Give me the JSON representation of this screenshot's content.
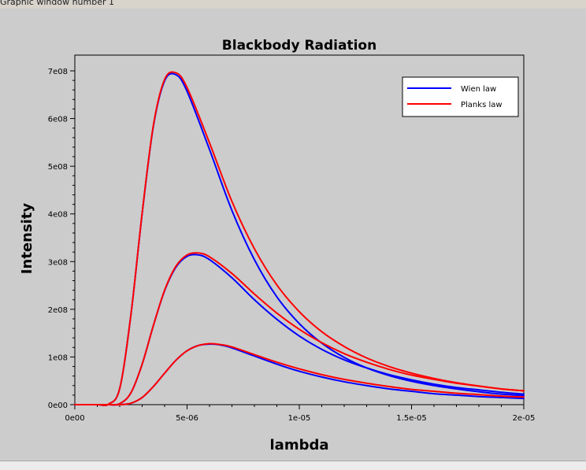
{
  "window": {
    "title": "Graphic window number 1"
  },
  "colors": {
    "wien": "#0000ff",
    "planck": "#ff0000",
    "plot_bg": "#cccccc",
    "axes": "#000000"
  },
  "chart_data": {
    "type": "line",
    "title": "Blackbody Radiation",
    "xlabel": "lambda",
    "ylabel": "Intensity",
    "xlim": [
      0,
      2e-05
    ],
    "ylim": [
      0,
      700000000.0
    ],
    "xticks": [
      {
        "value": 0,
        "label": "0e00"
      },
      {
        "value": 5e-06,
        "label": "5e-06"
      },
      {
        "value": 1e-05,
        "label": "1e-05"
      },
      {
        "value": 1.5e-05,
        "label": "1.5e-05"
      },
      {
        "value": 2e-05,
        "label": "2e-05"
      }
    ],
    "yticks": [
      {
        "value": 0,
        "label": "0e00"
      },
      {
        "value": 100000000.0,
        "label": "1e08"
      },
      {
        "value": 200000000.0,
        "label": "2e08"
      },
      {
        "value": 300000000.0,
        "label": "3e08"
      },
      {
        "value": 400000000.0,
        "label": "4e08"
      },
      {
        "value": 500000000.0,
        "label": "5e08"
      },
      {
        "value": 600000000.0,
        "label": "6e08"
      },
      {
        "value": 700000000.0,
        "label": "7e08"
      }
    ],
    "legend": {
      "placement": "top-right",
      "entries": [
        {
          "label": "Wien law",
          "series": "wien"
        },
        {
          "label": "Planks law",
          "series": "planck"
        }
      ]
    },
    "grid": false,
    "series": [
      {
        "law": "wien",
        "color": "#0000ff",
        "x": [
          1e-06,
          1.5e-06,
          2e-06,
          2.5e-06,
          3e-06,
          3.5e-06,
          4e-06,
          4.5e-06,
          5e-06,
          6e-06,
          7e-06,
          8e-06,
          9e-06,
          1e-05,
          1.1e-05,
          1.2e-05,
          1.3e-05,
          1.4e-05,
          1.5e-05,
          1.6e-05,
          1.7e-05,
          1.8e-05,
          1.9e-05,
          2e-05
        ],
        "y": [
          0,
          1000000.0,
          34000000.0,
          189000000.0,
          401000000.0,
          584000000.0,
          679000000.0,
          692000000.0,
          657000000.0,
          535000000.0,
          407000000.0,
          304000000.0,
          226000000.0,
          170000000.0,
          129000000.0,
          99000000.0,
          77000000.0,
          61000000.0,
          49000000.0,
          40000000.0,
          33000000.0,
          27000000.0,
          22000000.0,
          19000000.0
        ]
      },
      {
        "law": "planck",
        "color": "#ff0000",
        "x": [
          1e-06,
          1.5e-06,
          2e-06,
          2.5e-06,
          3e-06,
          3.5e-06,
          4e-06,
          4.5e-06,
          5e-06,
          6e-06,
          7e-06,
          8e-06,
          9e-06,
          1e-05,
          1.1e-05,
          1.2e-05,
          1.3e-05,
          1.4e-05,
          1.5e-05,
          1.6e-05,
          1.7e-05,
          1.8e-05,
          1.9e-05,
          2e-05
        ],
        "y": [
          0,
          1000000.0,
          34000000.0,
          189000000.0,
          402000000.0,
          586000000.0,
          682000000.0,
          696000000.0,
          665000000.0,
          549000000.0,
          426000000.0,
          327000000.0,
          251000000.0,
          195000000.0,
          153000000.0,
          122000000.0,
          98000000.0,
          80000000.0,
          66000000.0,
          55000000.0,
          46000000.0,
          39000000.0,
          33000000.0,
          29000000.0
        ]
      },
      {
        "law": "wien",
        "color": "#0000ff",
        "x": [
          1e-06,
          1.5e-06,
          2e-06,
          2.5e-06,
          3e-06,
          3.5e-06,
          4e-06,
          4.5e-06,
          5e-06,
          5.5e-06,
          6e-06,
          7e-06,
          8e-06,
          9e-06,
          1e-05,
          1.1e-05,
          1.2e-05,
          1.3e-05,
          1.4e-05,
          1.5e-05,
          1.6e-05,
          1.7e-05,
          1.8e-05,
          1.9e-05,
          2e-05
        ],
        "y": [
          0,
          0,
          2000000.0,
          25000000.0,
          85000000.0,
          166000000.0,
          239000000.0,
          288000000.0,
          311000000.0,
          314000000.0,
          304000000.0,
          266000000.0,
          220000000.0,
          179000000.0,
          144000000.0,
          116000000.0,
          94000000.0,
          77000000.0,
          63000000.0,
          52000000.0,
          43000000.0,
          36000000.0,
          31000000.0,
          26000000.0,
          22000000.0
        ]
      },
      {
        "law": "planck",
        "color": "#ff0000",
        "x": [
          1e-06,
          1.5e-06,
          2e-06,
          2.5e-06,
          3e-06,
          3.5e-06,
          4e-06,
          4.5e-06,
          5e-06,
          5.5e-06,
          6e-06,
          7e-06,
          8e-06,
          9e-06,
          1e-05,
          1.1e-05,
          1.2e-05,
          1.3e-05,
          1.4e-05,
          1.5e-05,
          1.6e-05,
          1.7e-05,
          1.8e-05,
          1.9e-05,
          2e-05
        ],
        "y": [
          0,
          0,
          2000000.0,
          25000000.0,
          85000000.0,
          166000000.0,
          240000000.0,
          290000000.0,
          314000000.0,
          318000000.0,
          310000000.0,
          275000000.0,
          232000000.0,
          192000000.0,
          158000000.0,
          130000000.0,
          107000000.0,
          89000000.0,
          74000000.0,
          62000000.0,
          53000000.0,
          45000000.0,
          39000000.0,
          33000000.0,
          29000000.0
        ]
      },
      {
        "law": "wien",
        "color": "#0000ff",
        "x": [
          1.5e-06,
          2e-06,
          2.5e-06,
          3e-06,
          3.5e-06,
          4e-06,
          4.5e-06,
          5e-06,
          5.5e-06,
          6e-06,
          6.5e-06,
          7e-06,
          8e-06,
          9e-06,
          1e-05,
          1.1e-05,
          1.2e-05,
          1.3e-05,
          1.4e-05,
          1.5e-05,
          1.6e-05,
          1.7e-05,
          1.8e-05,
          1.9e-05,
          2e-05
        ],
        "y": [
          0,
          0,
          3000000.0,
          15000000.0,
          38000000.0,
          66000000.0,
          93000000.0,
          113000000.0,
          124000000.0,
          127000000.0,
          125000000.0,
          119000000.0,
          102000000.0,
          85000000.0,
          70000000.0,
          58000000.0,
          48000000.0,
          40000000.0,
          33000000.0,
          28000000.0,
          23000000.0,
          20000000.0,
          17000000.0,
          15000000.0,
          13000000.0
        ]
      },
      {
        "law": "planck",
        "color": "#ff0000",
        "x": [
          1.5e-06,
          2e-06,
          2.5e-06,
          3e-06,
          3.5e-06,
          4e-06,
          4.5e-06,
          5e-06,
          5.5e-06,
          6e-06,
          6.5e-06,
          7e-06,
          8e-06,
          9e-06,
          1e-05,
          1.1e-05,
          1.2e-05,
          1.3e-05,
          1.4e-05,
          1.5e-05,
          1.6e-05,
          1.7e-05,
          1.8e-05,
          1.9e-05,
          2e-05
        ],
        "y": [
          0,
          0,
          3000000.0,
          15000000.0,
          38000000.0,
          66000000.0,
          93000000.0,
          113000000.0,
          124000000.0,
          128000000.0,
          126000000.0,
          121000000.0,
          105000000.0,
          89000000.0,
          75000000.0,
          63000000.0,
          53000000.0,
          45000000.0,
          38000000.0,
          32000000.0,
          28000000.0,
          24000000.0,
          21000000.0,
          18000000.0,
          16000000.0
        ]
      }
    ]
  }
}
